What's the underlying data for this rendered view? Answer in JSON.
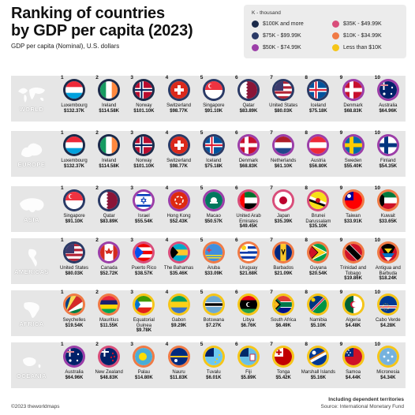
{
  "title_line1": "Ranking of countries",
  "title_line2": "by GDP per capita (2023)",
  "subtitle": "GDP per capita (Nominal), U.S. dollars",
  "legend": {
    "title": "K - thousand",
    "items": [
      {
        "label": "$100K and more",
        "color": "#1b2a4a"
      },
      {
        "label": "$75K - $99.99K",
        "color": "#2a3a66"
      },
      {
        "label": "$50K - $74.99K",
        "color": "#9c3ea8"
      },
      {
        "label": "$35K - $49.99K",
        "color": "#d94d7a"
      },
      {
        "label": "$10K - $34.99K",
        "color": "#f07a45"
      },
      {
        "label": "Less than $10K",
        "color": "#f5c518"
      }
    ]
  },
  "regions": [
    {
      "name": "WORLD",
      "countries": [
        {
          "rank": "1",
          "name": "Luxembourg",
          "value": "$132.37K",
          "tier": 0,
          "flag": "luxembourg"
        },
        {
          "rank": "2",
          "name": "Ireland",
          "value": "$114.58K",
          "tier": 0,
          "flag": "ireland"
        },
        {
          "rank": "3",
          "name": "Norway",
          "value": "$101.10K",
          "tier": 0,
          "flag": "norway"
        },
        {
          "rank": "4",
          "name": "Switzerland",
          "value": "$98.77K",
          "tier": 1,
          "flag": "switzerland"
        },
        {
          "rank": "5",
          "name": "Singapore",
          "value": "$91.10K",
          "tier": 1,
          "flag": "singapore"
        },
        {
          "rank": "6",
          "name": "Qatar",
          "value": "$83.89K",
          "tier": 1,
          "flag": "qatar"
        },
        {
          "rank": "7",
          "name": "United States",
          "value": "$80.03K",
          "tier": 1,
          "flag": "usa"
        },
        {
          "rank": "8",
          "name": "Iceland",
          "value": "$75.18K",
          "tier": 1,
          "flag": "iceland"
        },
        {
          "rank": "9",
          "name": "Denmark",
          "value": "$68.83K",
          "tier": 2,
          "flag": "denmark"
        },
        {
          "rank": "10",
          "name": "Australia",
          "value": "$64.96K",
          "tier": 2,
          "flag": "australia"
        }
      ]
    },
    {
      "name": "EUROPE",
      "countries": [
        {
          "rank": "1",
          "name": "Luxembourg",
          "value": "$132.37K",
          "tier": 0,
          "flag": "luxembourg"
        },
        {
          "rank": "2",
          "name": "Ireland",
          "value": "$114.58K",
          "tier": 0,
          "flag": "ireland"
        },
        {
          "rank": "3",
          "name": "Norway",
          "value": "$101.10K",
          "tier": 0,
          "flag": "norway"
        },
        {
          "rank": "4",
          "name": "Switzerland",
          "value": "$98.77K",
          "tier": 1,
          "flag": "switzerland"
        },
        {
          "rank": "5",
          "name": "Iceland",
          "value": "$75.18K",
          "tier": 1,
          "flag": "iceland"
        },
        {
          "rank": "6",
          "name": "Denmark",
          "value": "$68.83K",
          "tier": 2,
          "flag": "denmark"
        },
        {
          "rank": "7",
          "name": "Netherlands",
          "value": "$61.10K",
          "tier": 2,
          "flag": "netherlands"
        },
        {
          "rank": "8",
          "name": "Austria",
          "value": "$56.80K",
          "tier": 2,
          "flag": "austria"
        },
        {
          "rank": "9",
          "name": "Sweden",
          "value": "$55.40K",
          "tier": 2,
          "flag": "sweden"
        },
        {
          "rank": "10",
          "name": "Finland",
          "value": "$54.35K",
          "tier": 2,
          "flag": "finland"
        }
      ]
    },
    {
      "name": "ASIA",
      "countries": [
        {
          "rank": "1",
          "name": "Singapore",
          "value": "$91.10K",
          "tier": 1,
          "flag": "singapore"
        },
        {
          "rank": "2",
          "name": "Qatar",
          "value": "$83.89K",
          "tier": 1,
          "flag": "qatar"
        },
        {
          "rank": "3",
          "name": "Israel",
          "value": "$55.54K",
          "tier": 2,
          "flag": "israel"
        },
        {
          "rank": "4",
          "name": "Hong Kong",
          "value": "$52.43K",
          "tier": 2,
          "flag": "hongkong"
        },
        {
          "rank": "5",
          "name": "Macao",
          "value": "$50.57K",
          "tier": 2,
          "flag": "macao"
        },
        {
          "rank": "6",
          "name": "United Arab Emirates",
          "value": "$49.45K",
          "tier": 3,
          "flag": "uae"
        },
        {
          "rank": "7",
          "name": "Japan",
          "value": "$35.39K",
          "tier": 3,
          "flag": "japan"
        },
        {
          "rank": "8",
          "name": "Brunei Darussalam",
          "value": "$35.10K",
          "tier": 3,
          "flag": "brunei"
        },
        {
          "rank": "9",
          "name": "Taiwan",
          "value": "$33.91K",
          "tier": 4,
          "flag": "taiwan"
        },
        {
          "rank": "10",
          "name": "Kuwait",
          "value": "$33.65K",
          "tier": 4,
          "flag": "kuwait"
        }
      ]
    },
    {
      "name": "AMERICAS",
      "countries": [
        {
          "rank": "1",
          "name": "United States",
          "value": "$80.03K",
          "tier": 1,
          "flag": "usa"
        },
        {
          "rank": "2",
          "name": "Canada",
          "value": "$52.72K",
          "tier": 2,
          "flag": "canada"
        },
        {
          "rank": "3",
          "name": "Puerto Rico",
          "value": "$38.57K",
          "tier": 3,
          "flag": "puertorico"
        },
        {
          "rank": "4",
          "name": "The Bahamas",
          "value": "$35.46K",
          "tier": 3,
          "flag": "bahamas"
        },
        {
          "rank": "5",
          "name": "Aruba",
          "value": "$33.09K",
          "tier": 4,
          "flag": "aruba"
        },
        {
          "rank": "6",
          "name": "Uruguay",
          "value": "$21.68K",
          "tier": 4,
          "flag": "uruguay"
        },
        {
          "rank": "7",
          "name": "Barbados",
          "value": "$21.09K",
          "tier": 4,
          "flag": "barbados"
        },
        {
          "rank": "8",
          "name": "Guyana",
          "value": "$20.54K",
          "tier": 4,
          "flag": "guyana"
        },
        {
          "rank": "9",
          "name": "Trinidad and Tobago",
          "value": "$19.86K",
          "tier": 4,
          "flag": "trinidad"
        },
        {
          "rank": "10",
          "name": "Antigua and Barbuda",
          "value": "$18.24K",
          "tier": 4,
          "flag": "antigua"
        }
      ]
    },
    {
      "name": "AFRICA",
      "countries": [
        {
          "rank": "1",
          "name": "Seychelles",
          "value": "$19.54K",
          "tier": 4,
          "flag": "seychelles"
        },
        {
          "rank": "2",
          "name": "Mauritius",
          "value": "$11.55K",
          "tier": 4,
          "flag": "mauritius"
        },
        {
          "rank": "3",
          "name": "Equatorial Guinea",
          "value": "$9.78K",
          "tier": 5,
          "flag": "eqguinea"
        },
        {
          "rank": "4",
          "name": "Gabon",
          "value": "$9.29K",
          "tier": 5,
          "flag": "gabon"
        },
        {
          "rank": "5",
          "name": "Botswana",
          "value": "$7.27K",
          "tier": 5,
          "flag": "botswana"
        },
        {
          "rank": "6",
          "name": "Libya",
          "value": "$6.76K",
          "tier": 5,
          "flag": "libya"
        },
        {
          "rank": "7",
          "name": "South Africa",
          "value": "$6.49K",
          "tier": 5,
          "flag": "southafrica"
        },
        {
          "rank": "8",
          "name": "Namibia",
          "value": "$5.10K",
          "tier": 5,
          "flag": "namibia"
        },
        {
          "rank": "9",
          "name": "Algeria",
          "value": "$4.48K",
          "tier": 5,
          "flag": "algeria"
        },
        {
          "rank": "10",
          "name": "Cabo Verde",
          "value": "$4.28K",
          "tier": 5,
          "flag": "caboverde"
        }
      ]
    },
    {
      "name": "OCEANIA",
      "countries": [
        {
          "rank": "1",
          "name": "Australia",
          "value": "$64.96K",
          "tier": 2,
          "flag": "australia"
        },
        {
          "rank": "2",
          "name": "New Zealand",
          "value": "$48.83K",
          "tier": 3,
          "flag": "newzealand"
        },
        {
          "rank": "3",
          "name": "Palau",
          "value": "$14.80K",
          "tier": 4,
          "flag": "palau"
        },
        {
          "rank": "4",
          "name": "Nauru",
          "value": "$11.83K",
          "tier": 4,
          "flag": "nauru"
        },
        {
          "rank": "5",
          "name": "Tuvalu",
          "value": "$6.01K",
          "tier": 5,
          "flag": "tuvalu"
        },
        {
          "rank": "6",
          "name": "Fiji",
          "value": "$5.89K",
          "tier": 5,
          "flag": "fiji"
        },
        {
          "rank": "7",
          "name": "Tonga",
          "value": "$5.42K",
          "tier": 5,
          "flag": "tonga"
        },
        {
          "rank": "8",
          "name": "Marshall Islands",
          "value": "$5.16K",
          "tier": 5,
          "flag": "marshall"
        },
        {
          "rank": "9",
          "name": "Samoa",
          "value": "$4.44K",
          "tier": 5,
          "flag": "samoa"
        },
        {
          "rank": "10",
          "name": "Micronesia",
          "value": "$4.34K",
          "tier": 5,
          "flag": "micronesia"
        }
      ]
    }
  ],
  "footer": {
    "note": "Including dependent territories",
    "source": "Source: International Monetary Fund",
    "copyright": "©2023 theworldmaps"
  }
}
